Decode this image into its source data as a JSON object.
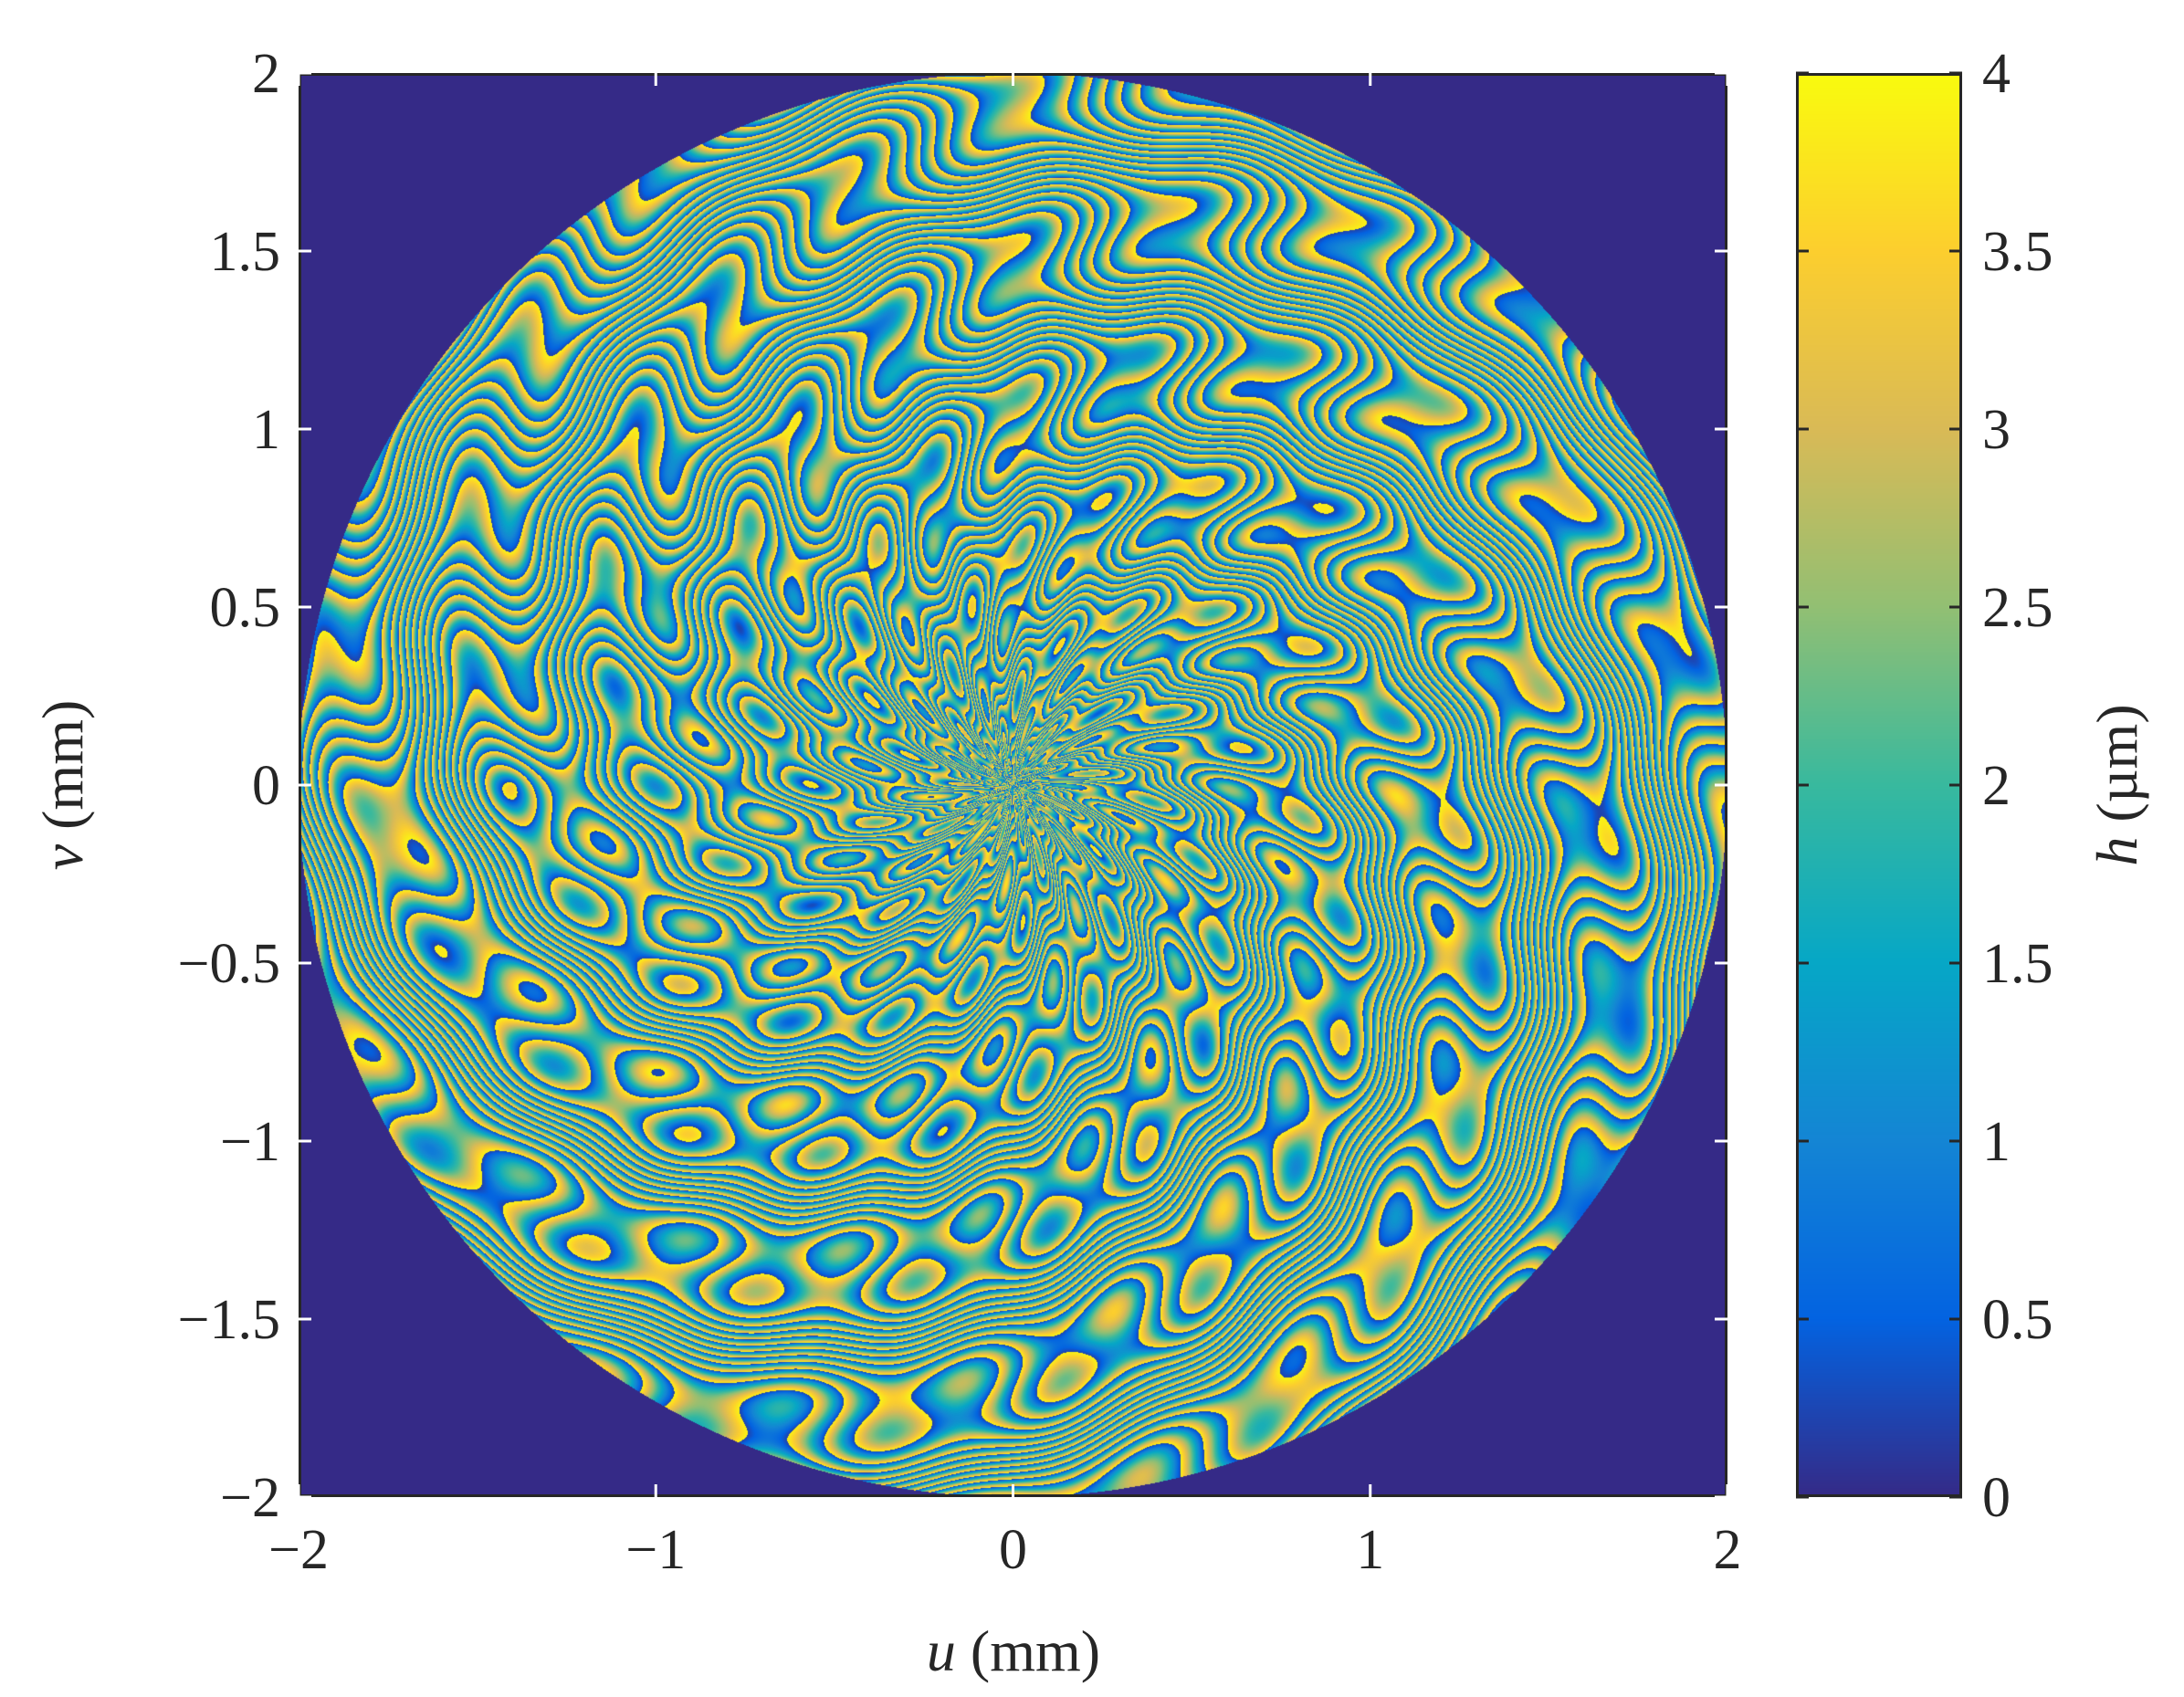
{
  "chart_data": [
    {
      "type": "heatmap",
      "title": "",
      "xlabel": {
        "var": "u",
        "unit": " (mm)"
      },
      "ylabel": {
        "var": "v",
        "unit": " (mm)"
      },
      "xlim": [
        -2,
        2
      ],
      "ylim": [
        -2,
        2
      ],
      "x_ticks": [
        -2,
        -1,
        0,
        1,
        2
      ],
      "x_tick_labels": [
        "−2",
        "−1",
        "0",
        "1",
        "2"
      ],
      "y_ticks": [
        -2,
        -1.5,
        -1,
        -0.5,
        0,
        0.5,
        1,
        1.5,
        2
      ],
      "y_tick_labels": [
        "−2",
        "−1.5",
        "−1",
        "−0.5",
        "0",
        "0.5",
        "1",
        "1.5",
        "2"
      ],
      "grid": false,
      "aperture_radius": 2,
      "background_value": 0,
      "pattern": "wrapped height map inside a circular aperture, concentric fringes centred near u = 0 and u = −1.4 mm",
      "colorbar": {
        "label": {
          "var": "h",
          "unit": " (µm)"
        },
        "range": [
          0,
          4
        ],
        "ticks": [
          0,
          0.5,
          1,
          1.5,
          2,
          2.5,
          3,
          3.5,
          4
        ],
        "tick_labels": [
          "0",
          "0.5",
          "1",
          "1.5",
          "2",
          "2.5",
          "3",
          "3.5",
          "4"
        ],
        "colormap": "parula",
        "colormap_stops": [
          "#352a87",
          "#0363e1",
          "#1485d4",
          "#06a7c6",
          "#38b99e",
          "#92bf73",
          "#d9ba56",
          "#fcce2e",
          "#f9fb0e"
        ]
      }
    }
  ]
}
